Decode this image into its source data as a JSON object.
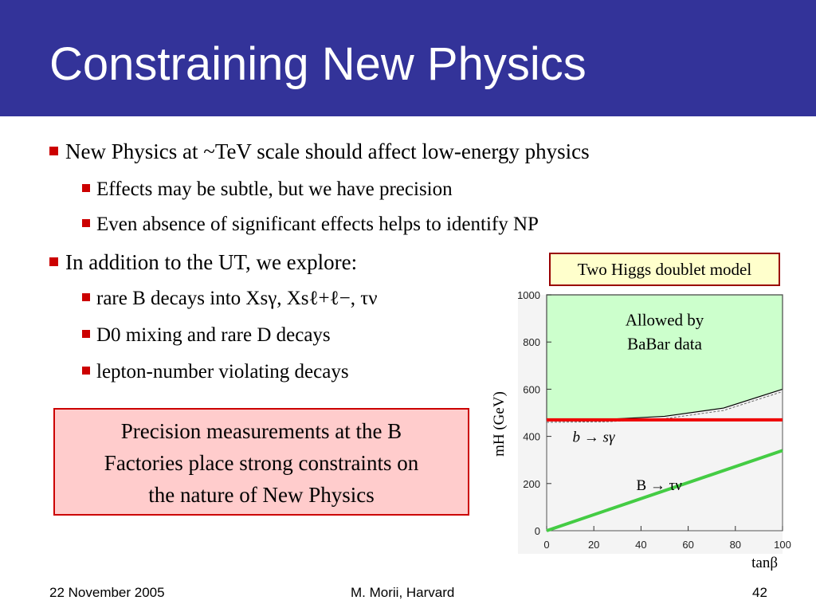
{
  "slide": {
    "title": "Constraining New Physics",
    "bullets": [
      {
        "level": 1,
        "text": "New Physics at ~TeV scale should affect low-energy physics"
      },
      {
        "level": 2,
        "text": "Effects may be subtle, but we have precision"
      },
      {
        "level": 2,
        "text": "Even absence of significant effects helps to identify NP"
      },
      {
        "level": 1,
        "text": "In addition to the UT, we explore:"
      },
      {
        "level": 2,
        "text": "rare B decays into Xsγ, Xsℓ+ℓ−, τν"
      },
      {
        "level": 2,
        "text": "D0 mixing and rare D decays"
      },
      {
        "level": 2,
        "text": "lepton-number violating decays"
      }
    ],
    "callout": {
      "line1": "Precision measurements at the B",
      "line2": "Factories place strong constraints on",
      "line3": "the nature of New Physics"
    },
    "model_label": "Two Higgs doublet model"
  },
  "chart_data": {
    "type": "line",
    "title": "",
    "xlabel": "tanβ",
    "ylabel": "mH (GeV)",
    "xlim": [
      0,
      100
    ],
    "ylim": [
      0,
      1000
    ],
    "x_ticks": [
      0,
      20,
      40,
      60,
      80,
      100
    ],
    "y_ticks": [
      0,
      200,
      400,
      600,
      800,
      1000
    ],
    "allowed_region_label": "Allowed by BaBar data",
    "series": [
      {
        "name": "b → sγ",
        "color": "#ee0000",
        "x": [
          0,
          100
        ],
        "y": [
          470,
          470
        ]
      },
      {
        "name": "B → τν",
        "color": "#44cc44",
        "x": [
          0,
          100
        ],
        "y": [
          0,
          340
        ]
      }
    ],
    "allowed_region": {
      "x": [
        0,
        25,
        50,
        75,
        100
      ],
      "y": [
        470,
        472,
        485,
        520,
        600
      ],
      "fill": "#ccffcc"
    }
  },
  "footer": {
    "date": "22 November 2005",
    "author": "M. Morii, Harvard",
    "page": "42"
  }
}
